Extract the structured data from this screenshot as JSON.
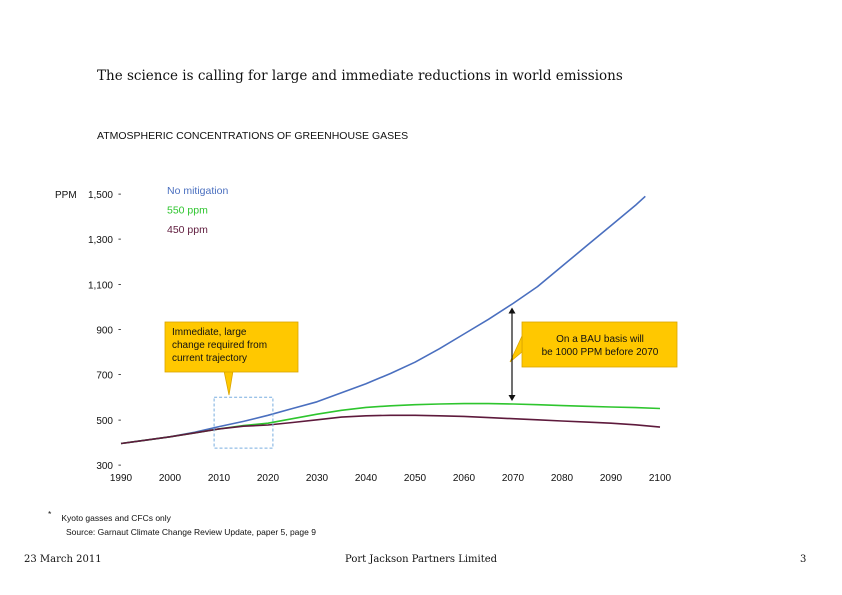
{
  "slide": {
    "title": "The science is calling for large and immediate reductions in world emissions"
  },
  "footer": {
    "date": "23 March 2011",
    "company": "Port Jackson Partners Limited",
    "page": "3"
  },
  "footnote": {
    "marker": "*",
    "text": "Kyoto gasses and CFCs only",
    "source": "Source:   Garnaut Climate Change Review Update, paper 5, page 9"
  },
  "colors": {
    "no_mitigation": "#4a6fbf",
    "ppm_550": "#2ec52e",
    "ppm_450": "#5e1a3c",
    "callout_fill": "#ffc800",
    "callout_border": "#d9a400",
    "dashed_box": "#79aee0"
  },
  "chart_data": {
    "type": "line",
    "title": "ATMOSPHERIC CONCENTRATIONS OF GREENHOUSE GASES",
    "ylabel": "PPM",
    "xlabel": "",
    "x_ticks": [
      1990,
      2000,
      2010,
      2020,
      2030,
      2040,
      2050,
      2060,
      2070,
      2080,
      2090,
      2100
    ],
    "y_ticks": [
      300,
      500,
      700,
      900,
      1100,
      1300,
      1500
    ],
    "y_tick_labels": [
      "300",
      "500",
      "700",
      "900",
      "1,100",
      "1,300",
      "1,500"
    ],
    "xlim": [
      1990,
      2100
    ],
    "ylim": [
      300,
      1500
    ],
    "grid": false,
    "legend_position": "top-left",
    "series": [
      {
        "name": "No mitigation",
        "color": "#4a6fbf",
        "x": [
          1990,
          1995,
          2000,
          2005,
          2010,
          2015,
          2020,
          2025,
          2030,
          2035,
          2040,
          2045,
          2050,
          2055,
          2060,
          2065,
          2070,
          2075,
          2080,
          2085,
          2090,
          2095,
          2097
        ],
        "y": [
          395,
          410,
          425,
          445,
          470,
          493,
          520,
          550,
          580,
          620,
          660,
          705,
          755,
          815,
          880,
          945,
          1015,
          1090,
          1180,
          1270,
          1360,
          1450,
          1490
        ]
      },
      {
        "name": "550 ppm",
        "color": "#2ec52e",
        "x": [
          1990,
          1995,
          2000,
          2005,
          2010,
          2015,
          2020,
          2025,
          2030,
          2035,
          2040,
          2045,
          2050,
          2055,
          2060,
          2065,
          2070,
          2075,
          2080,
          2085,
          2090,
          2095,
          2100
        ],
        "y": [
          395,
          410,
          425,
          442,
          460,
          475,
          485,
          505,
          525,
          542,
          555,
          562,
          567,
          570,
          572,
          572,
          570,
          567,
          563,
          560,
          557,
          554,
          550
        ]
      },
      {
        "name": "450 ppm",
        "color": "#5e1a3c",
        "x": [
          1990,
          1995,
          2000,
          2005,
          2010,
          2015,
          2020,
          2025,
          2030,
          2035,
          2040,
          2045,
          2050,
          2055,
          2060,
          2065,
          2070,
          2075,
          2080,
          2085,
          2090,
          2095,
          2100
        ],
        "y": [
          395,
          410,
          425,
          442,
          460,
          472,
          477,
          488,
          500,
          512,
          518,
          520,
          520,
          518,
          515,
          510,
          505,
          500,
          495,
          490,
          485,
          478,
          468
        ]
      }
    ],
    "annotations": {
      "left_callout": "Immediate, large change required from current trajectory",
      "right_callout": "On a BAU basis will be 1000 PPM before 2070",
      "bau_arrow": {
        "x": 2070,
        "y_from": 570,
        "y_to": 1015
      },
      "dashed_box": {
        "x_from": 2009,
        "x_to": 2021,
        "y_from": 375,
        "y_to": 600
      }
    }
  }
}
